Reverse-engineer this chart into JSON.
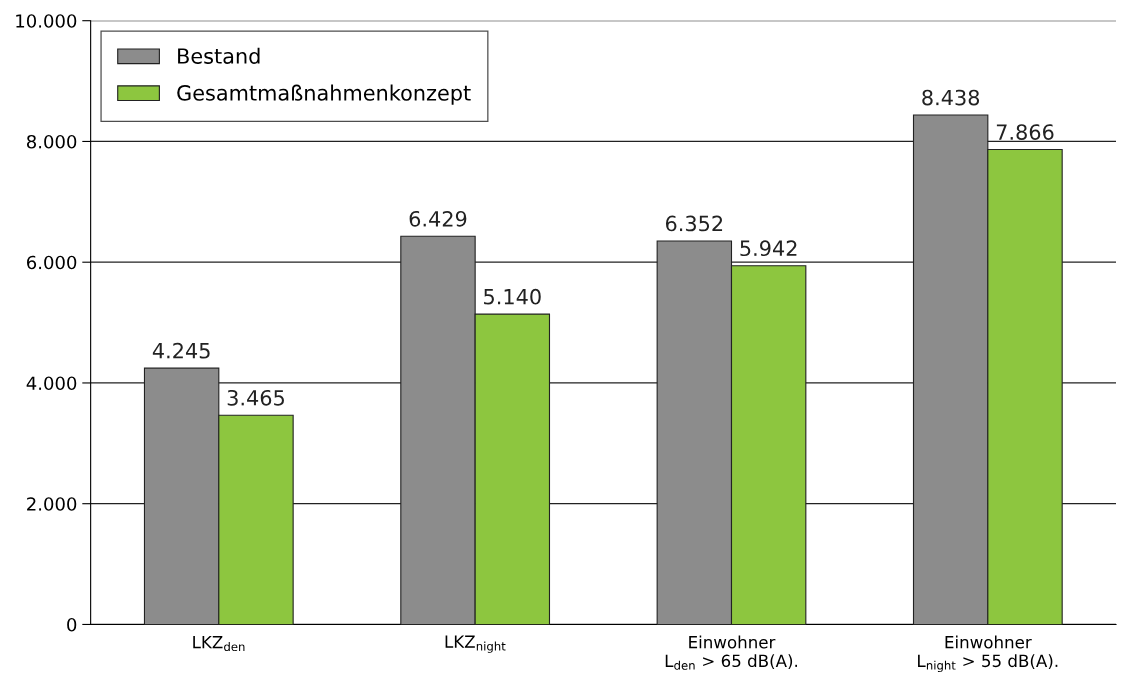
{
  "chart_data": {
    "type": "bar",
    "categories": [
      "LKZ$_{den}$",
      "LKZ$_{night}$",
      "Einwohner\nL$_{den}$ > 65 dB(A).",
      "Einwohner\nL$_{night}$ > 55 dB(A)."
    ],
    "series": [
      {
        "name": "Bestand",
        "color": "#8c8c8c",
        "values": [
          4245,
          6429,
          6352,
          8438
        ],
        "value_labels": [
          "4.245",
          "6.429",
          "6.352",
          "8.438"
        ]
      },
      {
        "name": "Gesamtmaßnahmenkonzept",
        "color": "#8dc63f",
        "values": [
          3465,
          5140,
          5942,
          7866
        ],
        "value_labels": [
          "3.465",
          "5.140",
          "5.942",
          "7.866"
        ]
      }
    ],
    "ylim": [
      0,
      10000
    ],
    "yticks": [
      {
        "value": 0,
        "label": "0"
      },
      {
        "value": 2000,
        "label": "2.000"
      },
      {
        "value": 4000,
        "label": "4.000"
      },
      {
        "value": 6000,
        "label": "6.000"
      },
      {
        "value": 8000,
        "label": "8.000"
      },
      {
        "value": 10000,
        "label": "10.000"
      }
    ],
    "grid": "y",
    "legend": "top left"
  }
}
